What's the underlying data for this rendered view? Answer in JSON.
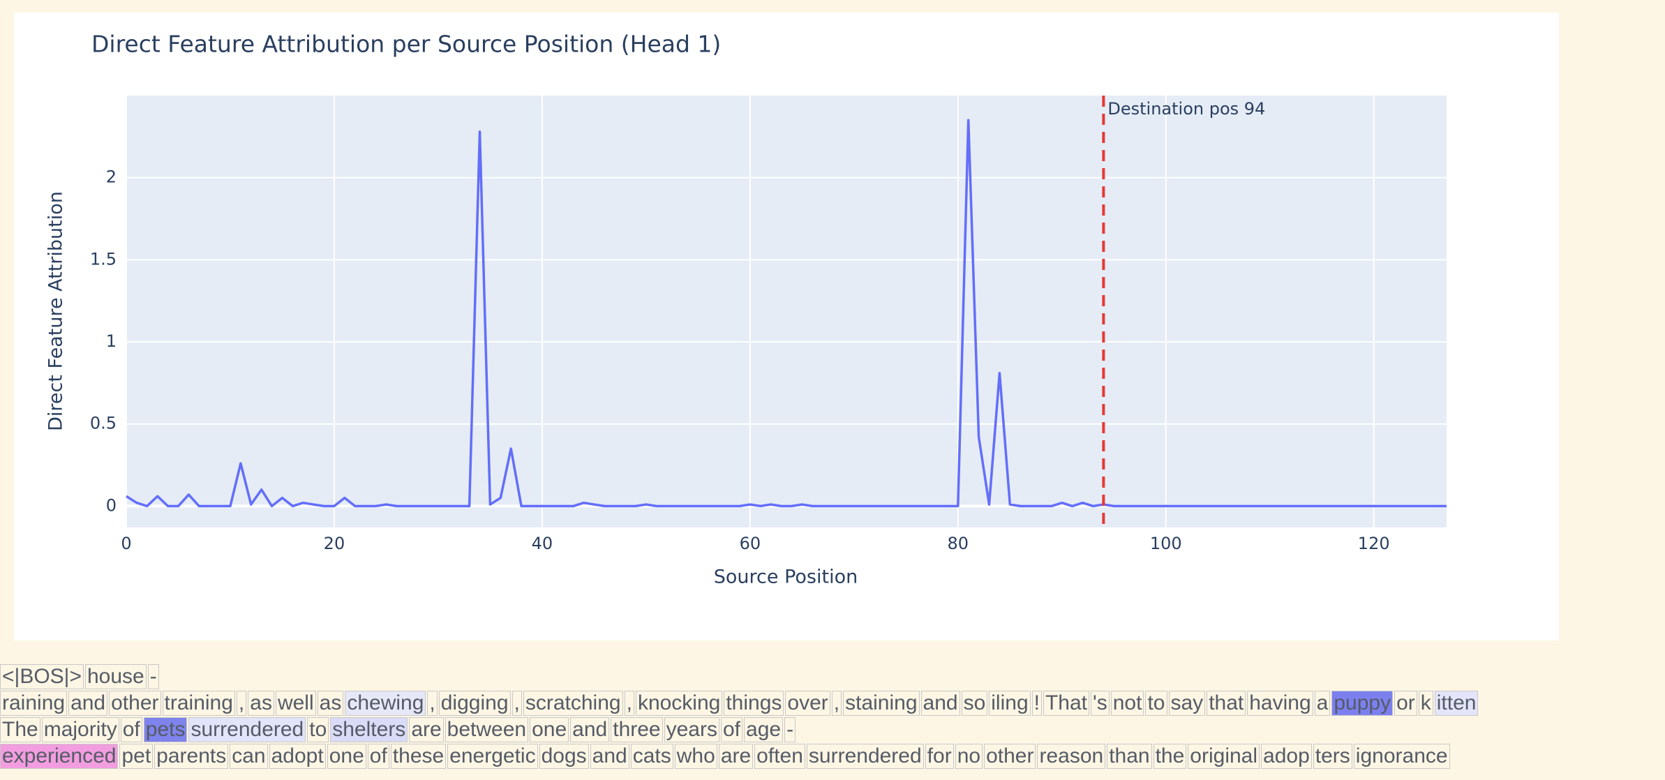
{
  "chart_data": {
    "type": "line",
    "title": "Direct Feature Attribution per Source Position (Head 1)",
    "x_label": "Source Position",
    "y_label": "Direct Feature Attribution",
    "x": [
      0,
      1,
      2,
      3,
      4,
      5,
      6,
      7,
      8,
      9,
      10,
      11,
      12,
      13,
      14,
      15,
      16,
      17,
      18,
      19,
      20,
      21,
      22,
      23,
      24,
      25,
      26,
      27,
      28,
      29,
      30,
      31,
      32,
      33,
      34,
      35,
      36,
      37,
      38,
      39,
      40,
      41,
      42,
      43,
      44,
      45,
      46,
      47,
      48,
      49,
      50,
      51,
      52,
      53,
      54,
      55,
      56,
      57,
      58,
      59,
      60,
      61,
      62,
      63,
      64,
      65,
      66,
      67,
      68,
      69,
      70,
      71,
      72,
      73,
      74,
      75,
      76,
      77,
      78,
      79,
      80,
      81,
      82,
      83,
      84,
      85,
      86,
      87,
      88,
      89,
      90,
      91,
      92,
      93,
      94,
      95,
      96,
      97,
      98,
      99,
      100,
      101,
      102,
      103,
      104,
      105,
      106,
      107,
      108,
      109,
      110,
      111,
      112,
      113,
      114,
      115,
      116,
      117,
      118,
      119,
      120,
      121,
      122,
      123,
      124,
      125,
      126,
      127
    ],
    "series": [
      {
        "color": "#636efa",
        "values": [
          0.06,
          0.02,
          0,
          0.06,
          0,
          0,
          0.07,
          0,
          0,
          0,
          0,
          0.26,
          0.01,
          0.1,
          0,
          0.05,
          0,
          0.02,
          0.01,
          0,
          0,
          0.05,
          0,
          0,
          0,
          0.01,
          0,
          0,
          0,
          0,
          0,
          0,
          0,
          0,
          2.28,
          0.01,
          0.05,
          0.35,
          0,
          0,
          0,
          0,
          0,
          0,
          0.02,
          0.01,
          0,
          0,
          0,
          0,
          0.01,
          0,
          0,
          0,
          0,
          0,
          0,
          0,
          0,
          0,
          0.01,
          0,
          0.01,
          0,
          0,
          0.01,
          0,
          0,
          0,
          0,
          0,
          0,
          0,
          0,
          0,
          0,
          0,
          0,
          0,
          0,
          0,
          2.35,
          0.42,
          0.01,
          0.81,
          0.01,
          0,
          0,
          0,
          0,
          0.02,
          0,
          0.02,
          0,
          0.01,
          0,
          0,
          0,
          0,
          0,
          0,
          0,
          0,
          0,
          0,
          0,
          0,
          0,
          0,
          0,
          0,
          0,
          0,
          0,
          0,
          0,
          0,
          0,
          0,
          0,
          0,
          0,
          0,
          0,
          0,
          0,
          0,
          0
        ]
      }
    ],
    "xlim": [
      0,
      127
    ],
    "ylim": [
      -0.13,
      2.5
    ],
    "xticks": [
      0,
      20,
      40,
      60,
      80,
      100,
      120
    ],
    "yticks": [
      0,
      0.5,
      1,
      1.5,
      2
    ],
    "grid": true,
    "vline": {
      "x": 94,
      "label": "Destination pos 94",
      "color": "#e53935"
    }
  },
  "token_lines": [
    [
      {
        "text": "<|BOS|>"
      },
      {
        "text": "house"
      },
      {
        "text": "-"
      }
    ],
    [
      {
        "text": "raining"
      },
      {
        "text": "and"
      },
      {
        "text": "other"
      },
      {
        "text": "training"
      },
      {
        "text": ","
      },
      {
        "text": "as"
      },
      {
        "text": "well"
      },
      {
        "text": "as"
      },
      {
        "text": "chewing",
        "bg": "#e6e7f7"
      },
      {
        "text": ","
      },
      {
        "text": "digging"
      },
      {
        "text": ","
      },
      {
        "text": "scratching"
      },
      {
        "text": ","
      },
      {
        "text": "knocking"
      },
      {
        "text": "things"
      },
      {
        "text": "over"
      },
      {
        "text": ","
      },
      {
        "text": "staining"
      },
      {
        "text": "and"
      },
      {
        "text": "so"
      },
      {
        "text": "iling"
      },
      {
        "text": "!"
      },
      {
        "text": "That"
      },
      {
        "text": "'s"
      },
      {
        "text": "not"
      },
      {
        "text": "to"
      },
      {
        "text": "say"
      },
      {
        "text": "that"
      },
      {
        "text": "having"
      },
      {
        "text": "a"
      },
      {
        "text": "puppy",
        "bg": "#7c80ef"
      },
      {
        "text": "or"
      },
      {
        "text": "k"
      },
      {
        "text": "itten",
        "bg": "#e4e5fa"
      }
    ],
    [
      {
        "text": "The"
      },
      {
        "text": "majority"
      },
      {
        "text": "of"
      },
      {
        "text": "pets",
        "bg": "#7f83ec"
      },
      {
        "text": "surrendered",
        "bg": "#e2e4fa"
      },
      {
        "text": "to"
      },
      {
        "text": "shelters",
        "bg": "#d9dbf7"
      },
      {
        "text": "are"
      },
      {
        "text": "between"
      },
      {
        "text": "one"
      },
      {
        "text": "and"
      },
      {
        "text": "three"
      },
      {
        "text": "years"
      },
      {
        "text": "of"
      },
      {
        "text": "age"
      },
      {
        "text": "-"
      }
    ],
    [
      {
        "text": "experienced",
        "bg": "#f29ddf"
      },
      {
        "text": "pet"
      },
      {
        "text": "parents"
      },
      {
        "text": "can"
      },
      {
        "text": "adopt"
      },
      {
        "text": "one"
      },
      {
        "text": "of"
      },
      {
        "text": "these"
      },
      {
        "text": "energetic"
      },
      {
        "text": "dogs"
      },
      {
        "text": "and"
      },
      {
        "text": "cats"
      },
      {
        "text": "who"
      },
      {
        "text": "are"
      },
      {
        "text": "often"
      },
      {
        "text": "surrendered"
      },
      {
        "text": "for"
      },
      {
        "text": "no"
      },
      {
        "text": "other"
      },
      {
        "text": "reason"
      },
      {
        "text": "than"
      },
      {
        "text": "the"
      },
      {
        "text": "original"
      },
      {
        "text": "adop"
      },
      {
        "text": "ters"
      },
      {
        "text": "ignorance"
      }
    ]
  ]
}
